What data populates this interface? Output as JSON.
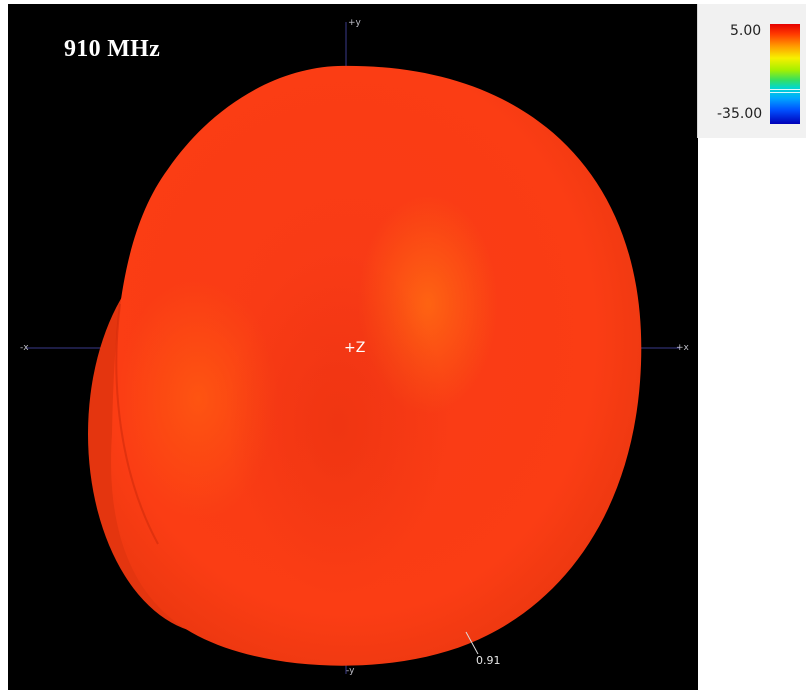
{
  "figure": {
    "frequency_label": "910 MHz",
    "axes": {
      "plus_y": "+y",
      "minus_y": "-y",
      "minus_x": "-x",
      "plus_x": "+x",
      "plus_z": "+Z"
    },
    "value_label": "0.91"
  },
  "legend": {
    "max_label": "5.00",
    "min_label": "-35.00"
  },
  "colors": {
    "background": "#000000",
    "pattern_main": "#fb3b14",
    "pattern_highlight": "#ff5a14",
    "legend_top": "#e60000",
    "legend_bottom": "#0000b8"
  }
}
